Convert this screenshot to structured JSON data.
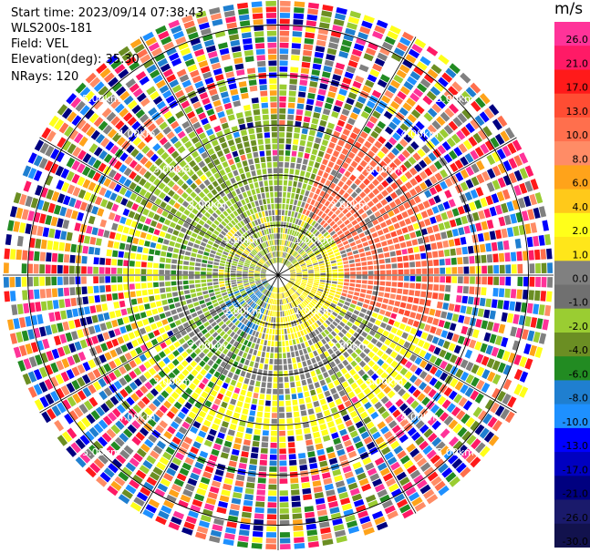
{
  "header": {
    "start_time": "Start time: 2023/09/14 07:38:43",
    "instrument": "WLS200s-181",
    "field": "Field: VEL",
    "elevation": "Elevation(deg): 35.30",
    "nrays": "NRays: 120"
  },
  "colorbar": {
    "unit": "m/s",
    "labels": [
      "26.0",
      "21.0",
      "17.0",
      "13.0",
      "10.0",
      "8.0",
      "6.0",
      "4.0",
      "2.0",
      "1.0",
      "0.0",
      "-1.0",
      "-2.0",
      "-4.0",
      "-6.0",
      "-8.0",
      "-10.0",
      "-13.0",
      "-17.0",
      "-21.0",
      "-26.0",
      "-30.0"
    ],
    "colors": [
      "#ff3399",
      "#ff1a66",
      "#ff1a1a",
      "#ff4d33",
      "#ff6f4d",
      "#ff8c66",
      "#ffa31a",
      "#ffc91a",
      "#ffff1a",
      "#ffe61a",
      "#808080",
      "#707070",
      "#9acd32",
      "#6b8e23",
      "#228b22",
      "#1f7fd0",
      "#1e90ff",
      "#0000ff",
      "#0000c0",
      "#000080",
      "#1a1a6b",
      "#12124d"
    ]
  },
  "chart_data": {
    "type": "heatmap",
    "title": "",
    "field": "VEL",
    "unit": "m/s",
    "elevation_deg": 35.3,
    "n_rays": 120,
    "range_rings_km": [
      1.0,
      2.0,
      3.0,
      4.0,
      5.0
    ],
    "range_ring_labels": [
      "1.00km",
      "2.00km",
      "3.00km",
      "4.00km",
      "5.00km"
    ],
    "max_range_km": 5.5,
    "colorscale_ms": [
      -30.0,
      26.0
    ],
    "pattern": {
      "near_field": "yellow (+1 to +2 m/s) east-southeast of center, grey near 0 m/s, olive/green (-2 to -6 m/s) to the west and north",
      "mid_field": "orange-red (+8 to +13 m/s) to the northeast, yellow band to the southeast, green band to the west",
      "far_field": "noisy multicolor returns beyond ~3.5 km"
    }
  }
}
